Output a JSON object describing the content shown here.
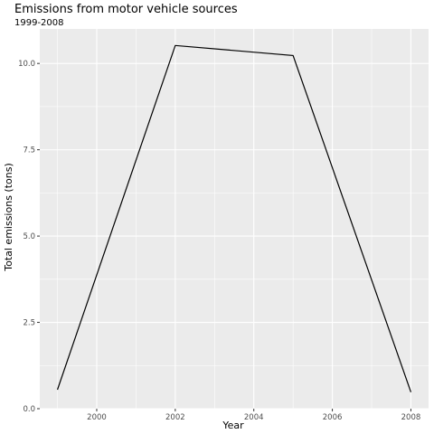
{
  "chart_data": {
    "type": "line",
    "title": "Emissions from motor vehicle sources",
    "subtitle": "1999-2008",
    "xlabel": "Year",
    "ylabel": "Total emissions (tons)",
    "x": [
      1999,
      2002,
      2005,
      2008
    ],
    "series": [
      {
        "values": [
          0.55,
          10.52,
          10.23,
          0.48
        ]
      }
    ],
    "xlim": [
      1998.55,
      2008.45
    ],
    "ylim": [
      0,
      11
    ],
    "x_ticks": [
      2000,
      2002,
      2004,
      2006,
      2008
    ],
    "x_tick_labels": [
      "2000",
      "2002",
      "2004",
      "2006",
      "2008"
    ],
    "y_ticks": [
      0,
      2.5,
      5,
      7.5,
      10
    ],
    "y_tick_labels": [
      "0.0",
      "2.5",
      "5.0",
      "7.5",
      "10.0"
    ],
    "grid": true,
    "legend": "none",
    "panel_color": "#ebebeb",
    "line_color": "#000000"
  }
}
